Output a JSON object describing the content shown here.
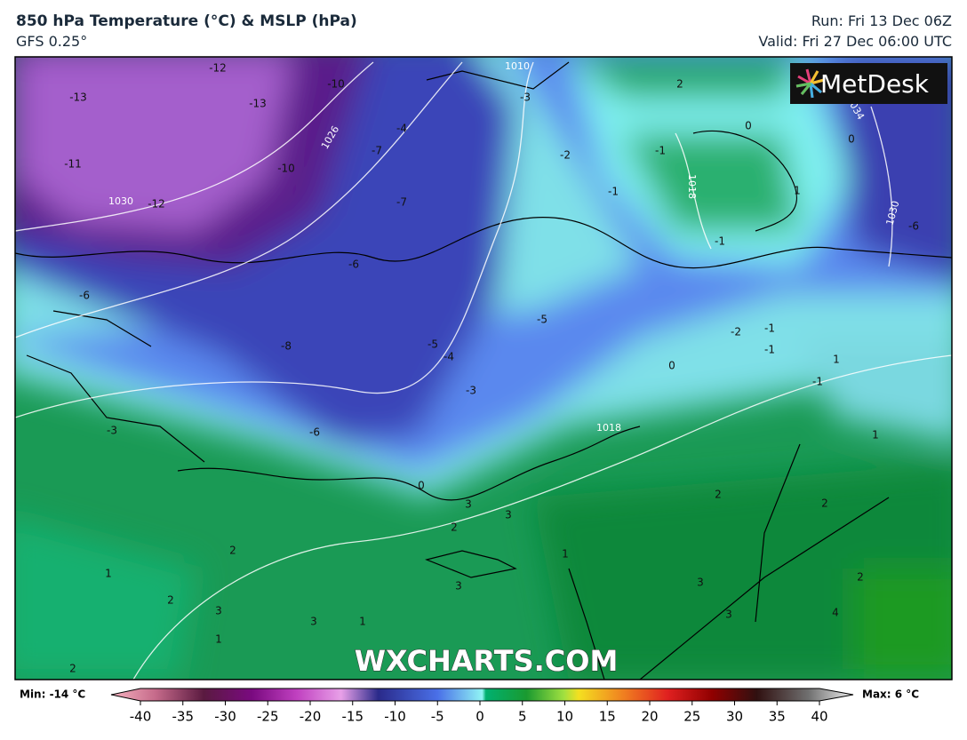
{
  "header": {
    "title": "850 hPa Temperature (°C) & MSLP (hPa)",
    "model": "GFS 0.25°",
    "run": "Run: Fri 13 Dec 06Z",
    "valid": "Valid: Fri 27 Dec 06:00 UTC"
  },
  "logo": "MetDesk",
  "watermark": "WXCHARTS.COM",
  "map": {
    "temperature_labels": [
      "-12",
      "-13",
      "-13",
      "-10",
      "-11",
      "-10",
      "-12",
      "-4",
      "-7",
      "-7",
      "-3",
      "-2",
      "-1",
      "-1",
      "-1",
      "2",
      "1",
      "0",
      "0",
      "-6",
      "-6",
      "-6",
      "-8",
      "-5",
      "-5",
      "-4",
      "-3",
      "-2",
      "-1",
      "-1",
      "0",
      "1",
      "-1",
      "-6",
      "-3",
      "0",
      "3",
      "3",
      "2",
      "2",
      "1",
      "2",
      "3",
      "3",
      "1",
      "1",
      "2",
      "3",
      "3",
      "1",
      "3",
      "2",
      "2",
      "4",
      "1",
      "2"
    ],
    "pressure_labels": [
      "1030",
      "1026",
      "1018",
      "1034",
      "1030",
      "1010",
      "1018"
    ]
  },
  "colorbar": {
    "min_label": "Min: -14 °C",
    "max_label": "Max: 6 °C",
    "range": [
      -40,
      40
    ],
    "ticks": [
      -40,
      -35,
      -30,
      -25,
      -20,
      -15,
      -10,
      -5,
      0,
      5,
      10,
      15,
      20,
      25,
      30,
      35,
      40
    ]
  }
}
